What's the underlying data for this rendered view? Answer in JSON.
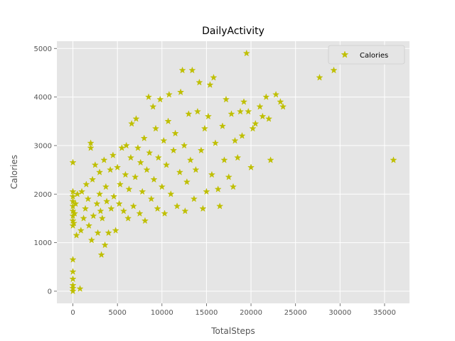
{
  "chart_data": {
    "type": "scatter",
    "title": "DailyActivity",
    "xlabel": "TotalSteps",
    "ylabel": "Calories",
    "xlim": [
      -1800,
      37800
    ],
    "ylim": [
      -250,
      5150
    ],
    "xticks": [
      0,
      5000,
      10000,
      15000,
      20000,
      25000,
      30000,
      35000
    ],
    "yticks": [
      0,
      1000,
      2000,
      3000,
      4000,
      5000
    ],
    "grid": true,
    "marker": "star",
    "legend": {
      "position": "top-right"
    },
    "series": [
      {
        "name": "Calories",
        "color": "#bfbf00",
        "points": [
          [
            0,
            0
          ],
          [
            0,
            60
          ],
          [
            0,
            120
          ],
          [
            0,
            250
          ],
          [
            0,
            400
          ],
          [
            0,
            650
          ],
          [
            0,
            1350
          ],
          [
            0,
            1450
          ],
          [
            0,
            1550
          ],
          [
            0,
            1650
          ],
          [
            0,
            1750
          ],
          [
            0,
            1850
          ],
          [
            0,
            1950
          ],
          [
            0,
            2050
          ],
          [
            0,
            2650
          ],
          [
            100,
            1400
          ],
          [
            200,
            1600
          ],
          [
            300,
            1800
          ],
          [
            400,
            1150
          ],
          [
            500,
            2000
          ],
          [
            800,
            50
          ],
          [
            900,
            1250
          ],
          [
            1000,
            2050
          ],
          [
            1200,
            1500
          ],
          [
            1400,
            1700
          ],
          [
            1500,
            2200
          ],
          [
            1700,
            1900
          ],
          [
            1800,
            1350
          ],
          [
            2000,
            2950
          ],
          [
            2000,
            3050
          ],
          [
            2100,
            1050
          ],
          [
            2200,
            2300
          ],
          [
            2300,
            1550
          ],
          [
            2500,
            2600
          ],
          [
            2700,
            1800
          ],
          [
            2800,
            1200
          ],
          [
            3000,
            2450
          ],
          [
            3000,
            2000
          ],
          [
            3100,
            1650
          ],
          [
            3200,
            750
          ],
          [
            3300,
            1500
          ],
          [
            3500,
            2700
          ],
          [
            3600,
            950
          ],
          [
            3700,
            2150
          ],
          [
            3800,
            1850
          ],
          [
            4000,
            1200
          ],
          [
            4200,
            2500
          ],
          [
            4300,
            1700
          ],
          [
            4500,
            2800
          ],
          [
            4600,
            1950
          ],
          [
            4800,
            1250
          ],
          [
            5000,
            2550
          ],
          [
            5200,
            1800
          ],
          [
            5300,
            2200
          ],
          [
            5500,
            2950
          ],
          [
            5700,
            1650
          ],
          [
            5900,
            2400
          ],
          [
            6000,
            3000
          ],
          [
            6200,
            1500
          ],
          [
            6300,
            2100
          ],
          [
            6500,
            2750
          ],
          [
            6600,
            3450
          ],
          [
            6800,
            1750
          ],
          [
            7000,
            2350
          ],
          [
            7100,
            3550
          ],
          [
            7300,
            2950
          ],
          [
            7500,
            1600
          ],
          [
            7600,
            2650
          ],
          [
            7800,
            2050
          ],
          [
            8000,
            3150
          ],
          [
            8100,
            1450
          ],
          [
            8300,
            2500
          ],
          [
            8500,
            4000
          ],
          [
            8600,
            2850
          ],
          [
            8800,
            1900
          ],
          [
            9000,
            3800
          ],
          [
            9100,
            2300
          ],
          [
            9300,
            3350
          ],
          [
            9500,
            1700
          ],
          [
            9600,
            2750
          ],
          [
            9800,
            3950
          ],
          [
            10000,
            2150
          ],
          [
            10200,
            3100
          ],
          [
            10300,
            1600
          ],
          [
            10500,
            2600
          ],
          [
            10700,
            3500
          ],
          [
            10800,
            4050
          ],
          [
            11000,
            2000
          ],
          [
            11300,
            2900
          ],
          [
            11500,
            3250
          ],
          [
            11700,
            1750
          ],
          [
            12000,
            2450
          ],
          [
            12100,
            4100
          ],
          [
            12300,
            4550
          ],
          [
            12500,
            3000
          ],
          [
            12600,
            1650
          ],
          [
            12800,
            2250
          ],
          [
            13000,
            3650
          ],
          [
            13200,
            2700
          ],
          [
            13400,
            4550
          ],
          [
            13600,
            1900
          ],
          [
            13800,
            2500
          ],
          [
            14000,
            3700
          ],
          [
            14200,
            4300
          ],
          [
            14400,
            2900
          ],
          [
            14600,
            1700
          ],
          [
            14800,
            3350
          ],
          [
            15000,
            2050
          ],
          [
            15200,
            3600
          ],
          [
            15400,
            4250
          ],
          [
            15600,
            2400
          ],
          [
            15800,
            4400
          ],
          [
            16000,
            3050
          ],
          [
            16300,
            2100
          ],
          [
            16500,
            1750
          ],
          [
            16800,
            3400
          ],
          [
            17000,
            2700
          ],
          [
            17200,
            3950
          ],
          [
            17500,
            2350
          ],
          [
            17800,
            3650
          ],
          [
            18000,
            2150
          ],
          [
            18200,
            3100
          ],
          [
            18500,
            2750
          ],
          [
            18800,
            3700
          ],
          [
            19000,
            3200
          ],
          [
            19200,
            3900
          ],
          [
            19500,
            4900
          ],
          [
            19700,
            3700
          ],
          [
            20000,
            2550
          ],
          [
            20200,
            3350
          ],
          [
            20500,
            3450
          ],
          [
            21000,
            3800
          ],
          [
            21300,
            3600
          ],
          [
            21700,
            4000
          ],
          [
            22000,
            3550
          ],
          [
            22200,
            2700
          ],
          [
            22800,
            4050
          ],
          [
            23300,
            3900
          ],
          [
            23600,
            3800
          ],
          [
            27700,
            4400
          ],
          [
            29300,
            4550
          ],
          [
            36000,
            2700
          ]
        ]
      }
    ]
  }
}
